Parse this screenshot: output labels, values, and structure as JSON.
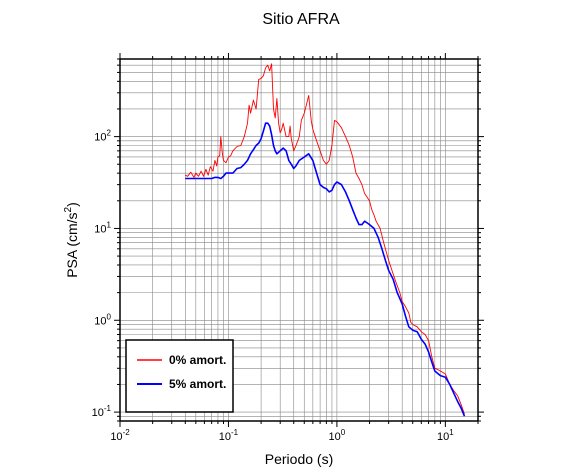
{
  "chart_data": {
    "type": "line",
    "title": "Sitio AFRA",
    "xlabel": "Periodo (s)",
    "ylabel": "PSA (cm/s²)",
    "ylabel_base": "PSA (cm/s",
    "ylabel_sup": "2",
    "ylabel_end": ")",
    "xscale": "log",
    "yscale": "log",
    "xlim": [
      0.01,
      20
    ],
    "ylim": [
      0.08,
      700
    ],
    "grid": true,
    "legend_position": "bottom-left",
    "x_ticks": [
      {
        "value": 0.01,
        "base": "10",
        "exp": "-2"
      },
      {
        "value": 0.1,
        "base": "10",
        "exp": "-1"
      },
      {
        "value": 1,
        "base": "10",
        "exp": "0"
      },
      {
        "value": 10,
        "base": "10",
        "exp": "1"
      }
    ],
    "y_ticks": [
      {
        "value": 0.1,
        "base": "10",
        "exp": "-1"
      },
      {
        "value": 1,
        "base": "10",
        "exp": "0"
      },
      {
        "value": 10,
        "base": "10",
        "exp": "1"
      },
      {
        "value": 100,
        "base": "10",
        "exp": "2"
      }
    ],
    "series": [
      {
        "name": "0% amort.",
        "color": "#ff0000",
        "points": [
          [
            0.04,
            38
          ],
          [
            0.042,
            37
          ],
          [
            0.045,
            41
          ],
          [
            0.048,
            36
          ],
          [
            0.05,
            40
          ],
          [
            0.053,
            37
          ],
          [
            0.056,
            42
          ],
          [
            0.059,
            37
          ],
          [
            0.062,
            44
          ],
          [
            0.065,
            38
          ],
          [
            0.068,
            47
          ],
          [
            0.072,
            42
          ],
          [
            0.075,
            55
          ],
          [
            0.078,
            48
          ],
          [
            0.08,
            60
          ],
          [
            0.083,
            62
          ],
          [
            0.085,
            100
          ],
          [
            0.088,
            65
          ],
          [
            0.09,
            55
          ],
          [
            0.095,
            52
          ],
          [
            0.1,
            60
          ],
          [
            0.105,
            62
          ],
          [
            0.11,
            70
          ],
          [
            0.12,
            78
          ],
          [
            0.13,
            80
          ],
          [
            0.14,
            100
          ],
          [
            0.15,
            140
          ],
          [
            0.155,
            220
          ],
          [
            0.16,
            180
          ],
          [
            0.17,
            250
          ],
          [
            0.18,
            200
          ],
          [
            0.19,
            420
          ],
          [
            0.2,
            430
          ],
          [
            0.21,
            460
          ],
          [
            0.22,
            560
          ],
          [
            0.23,
            600
          ],
          [
            0.24,
            520
          ],
          [
            0.25,
            620
          ],
          [
            0.26,
            200
          ],
          [
            0.27,
            160
          ],
          [
            0.28,
            260
          ],
          [
            0.29,
            140
          ],
          [
            0.3,
            110
          ],
          [
            0.31,
            120
          ],
          [
            0.32,
            140
          ],
          [
            0.34,
            100
          ],
          [
            0.36,
            100
          ],
          [
            0.37,
            130
          ],
          [
            0.38,
            95
          ],
          [
            0.4,
            70
          ],
          [
            0.42,
            80
          ],
          [
            0.45,
            100
          ],
          [
            0.47,
            150
          ],
          [
            0.5,
            180
          ],
          [
            0.55,
            280
          ],
          [
            0.58,
            150
          ],
          [
            0.6,
            120
          ],
          [
            0.65,
            90
          ],
          [
            0.7,
            70
          ],
          [
            0.75,
            55
          ],
          [
            0.8,
            50
          ],
          [
            0.85,
            55
          ],
          [
            0.9,
            80
          ],
          [
            0.95,
            150
          ],
          [
            1.0,
            145
          ],
          [
            1.1,
            125
          ],
          [
            1.2,
            100
          ],
          [
            1.3,
            80
          ],
          [
            1.4,
            60
          ],
          [
            1.5,
            40
          ],
          [
            1.6,
            35
          ],
          [
            1.7,
            30
          ],
          [
            1.8,
            24
          ],
          [
            2.0,
            20
          ],
          [
            2.1,
            16
          ],
          [
            2.2,
            14
          ],
          [
            2.3,
            12
          ],
          [
            2.5,
            10
          ],
          [
            2.7,
            7
          ],
          [
            3.0,
            4.5
          ],
          [
            3.3,
            3.2
          ],
          [
            3.5,
            2.6
          ],
          [
            3.8,
            2.0
          ],
          [
            4.0,
            1.6
          ],
          [
            4.3,
            1.4
          ],
          [
            4.6,
            1.2
          ],
          [
            4.8,
            0.95
          ],
          [
            5.0,
            0.9
          ],
          [
            5.5,
            0.85
          ],
          [
            6.0,
            0.75
          ],
          [
            6.5,
            0.7
          ],
          [
            7.0,
            0.6
          ],
          [
            7.5,
            0.4
          ],
          [
            8.0,
            0.3
          ],
          [
            8.5,
            0.29
          ],
          [
            9.0,
            0.28
          ],
          [
            9.5,
            0.27
          ],
          [
            10.0,
            0.26
          ],
          [
            11.0,
            0.2
          ],
          [
            12.0,
            0.17
          ],
          [
            13.0,
            0.15
          ],
          [
            14.0,
            0.12
          ],
          [
            15.0,
            0.095
          ]
        ]
      },
      {
        "name": "5% amort.",
        "color": "#0000ff",
        "points": [
          [
            0.04,
            35
          ],
          [
            0.045,
            35
          ],
          [
            0.05,
            35
          ],
          [
            0.055,
            35
          ],
          [
            0.06,
            35
          ],
          [
            0.065,
            35
          ],
          [
            0.07,
            35
          ],
          [
            0.075,
            36
          ],
          [
            0.08,
            36
          ],
          [
            0.085,
            35
          ],
          [
            0.09,
            37
          ],
          [
            0.095,
            40
          ],
          [
            0.1,
            40
          ],
          [
            0.11,
            40
          ],
          [
            0.12,
            45
          ],
          [
            0.13,
            46
          ],
          [
            0.14,
            50
          ],
          [
            0.15,
            55
          ],
          [
            0.16,
            65
          ],
          [
            0.17,
            72
          ],
          [
            0.18,
            80
          ],
          [
            0.19,
            85
          ],
          [
            0.2,
            95
          ],
          [
            0.21,
            115
          ],
          [
            0.22,
            140
          ],
          [
            0.23,
            140
          ],
          [
            0.24,
            130
          ],
          [
            0.25,
            105
          ],
          [
            0.26,
            80
          ],
          [
            0.27,
            70
          ],
          [
            0.28,
            65
          ],
          [
            0.3,
            70
          ],
          [
            0.32,
            75
          ],
          [
            0.34,
            70
          ],
          [
            0.36,
            55
          ],
          [
            0.38,
            50
          ],
          [
            0.4,
            45
          ],
          [
            0.42,
            48
          ],
          [
            0.45,
            55
          ],
          [
            0.5,
            60
          ],
          [
            0.55,
            65
          ],
          [
            0.6,
            55
          ],
          [
            0.65,
            40
          ],
          [
            0.7,
            30
          ],
          [
            0.75,
            28
          ],
          [
            0.8,
            27
          ],
          [
            0.85,
            25
          ],
          [
            0.9,
            26
          ],
          [
            0.95,
            30
          ],
          [
            1.0,
            32
          ],
          [
            1.1,
            30
          ],
          [
            1.2,
            25
          ],
          [
            1.3,
            20
          ],
          [
            1.4,
            16
          ],
          [
            1.5,
            13
          ],
          [
            1.6,
            11
          ],
          [
            1.7,
            11
          ],
          [
            1.8,
            12
          ],
          [
            1.9,
            11.5
          ],
          [
            2.0,
            11
          ],
          [
            2.2,
            10
          ],
          [
            2.4,
            8
          ],
          [
            2.6,
            6
          ],
          [
            2.8,
            4.5
          ],
          [
            3.0,
            3.5
          ],
          [
            3.3,
            2.8
          ],
          [
            3.6,
            2.0
          ],
          [
            4.0,
            1.5
          ],
          [
            4.3,
            1.1
          ],
          [
            4.6,
            0.85
          ],
          [
            5.0,
            0.78
          ],
          [
            5.5,
            0.75
          ],
          [
            6.0,
            0.62
          ],
          [
            6.5,
            0.55
          ],
          [
            7.0,
            0.45
          ],
          [
            7.5,
            0.35
          ],
          [
            8.0,
            0.28
          ],
          [
            9.0,
            0.25
          ],
          [
            10.0,
            0.24
          ],
          [
            11.0,
            0.2
          ],
          [
            12.0,
            0.16
          ],
          [
            13.0,
            0.13
          ],
          [
            14.0,
            0.11
          ],
          [
            15.0,
            0.09
          ]
        ]
      }
    ]
  }
}
